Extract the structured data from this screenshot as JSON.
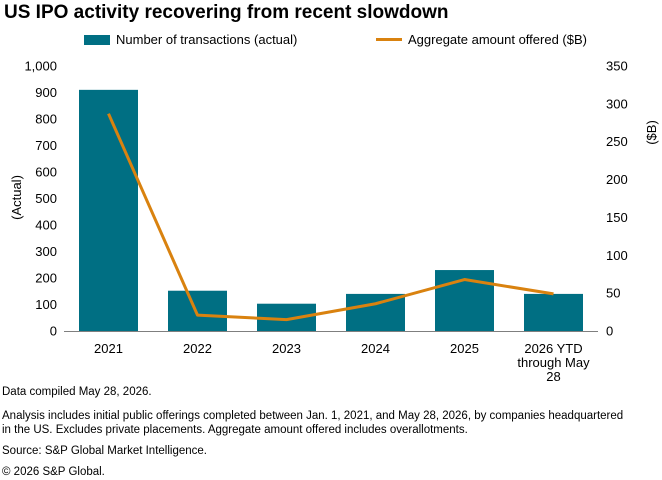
{
  "title": "US IPO activity recovering from recent slowdown",
  "legend": {
    "bars_label": "Number of transactions (actual)",
    "line_label": "Aggregate amount offered ($B)"
  },
  "colors": {
    "bars": "#006f83",
    "line": "#d9820f",
    "axis": "#7f7f7f"
  },
  "chart_data": {
    "type": "bar+line",
    "categories": [
      "2021",
      "2022",
      "2023",
      "2024",
      "2025",
      "2026 YTD through May 28"
    ],
    "category_label_lines": [
      [
        "2021"
      ],
      [
        "2022"
      ],
      [
        "2023"
      ],
      [
        "2024"
      ],
      [
        "2025"
      ],
      [
        "2026 YTD",
        "through May",
        "28"
      ]
    ],
    "series": [
      {
        "name": "Number of transactions (actual)",
        "type": "bar",
        "axis": "left",
        "values": [
          910,
          152,
          103,
          140,
          230,
          140
        ]
      },
      {
        "name": "Aggregate amount offered ($B)",
        "type": "line",
        "axis": "right",
        "values": [
          287,
          21,
          15,
          36,
          68,
          49
        ]
      }
    ],
    "y_left": {
      "label": "(Actual)",
      "ylim": [
        0,
        1000
      ],
      "ticks": [
        0,
        100,
        200,
        300,
        400,
        500,
        600,
        700,
        800,
        900,
        1000
      ],
      "tick_labels": [
        "0",
        "100",
        "200",
        "300",
        "400",
        "500",
        "600",
        "700",
        "800",
        "900",
        "1,000"
      ]
    },
    "y_right": {
      "label": "($B)",
      "ylim": [
        0,
        350
      ],
      "ticks": [
        0,
        50,
        100,
        150,
        200,
        250,
        300,
        350
      ],
      "tick_labels": [
        "0",
        "50",
        "100",
        "150",
        "200",
        "250",
        "300",
        "350"
      ]
    },
    "grid": false,
    "legend_position": "top"
  },
  "notes": {
    "compiled": "Data compiled May 28, 2026.",
    "analysis_line1": "Analysis includes initial public offerings completed between Jan. 1, 2021, and May 28, 2026, by companies headquartered",
    "analysis_line2": "in the US. Excludes private placements. Aggregate amount offered includes overallotments.",
    "source": "Source: S&P Global Market Intelligence.",
    "copyright": "© 2026 S&P Global."
  }
}
